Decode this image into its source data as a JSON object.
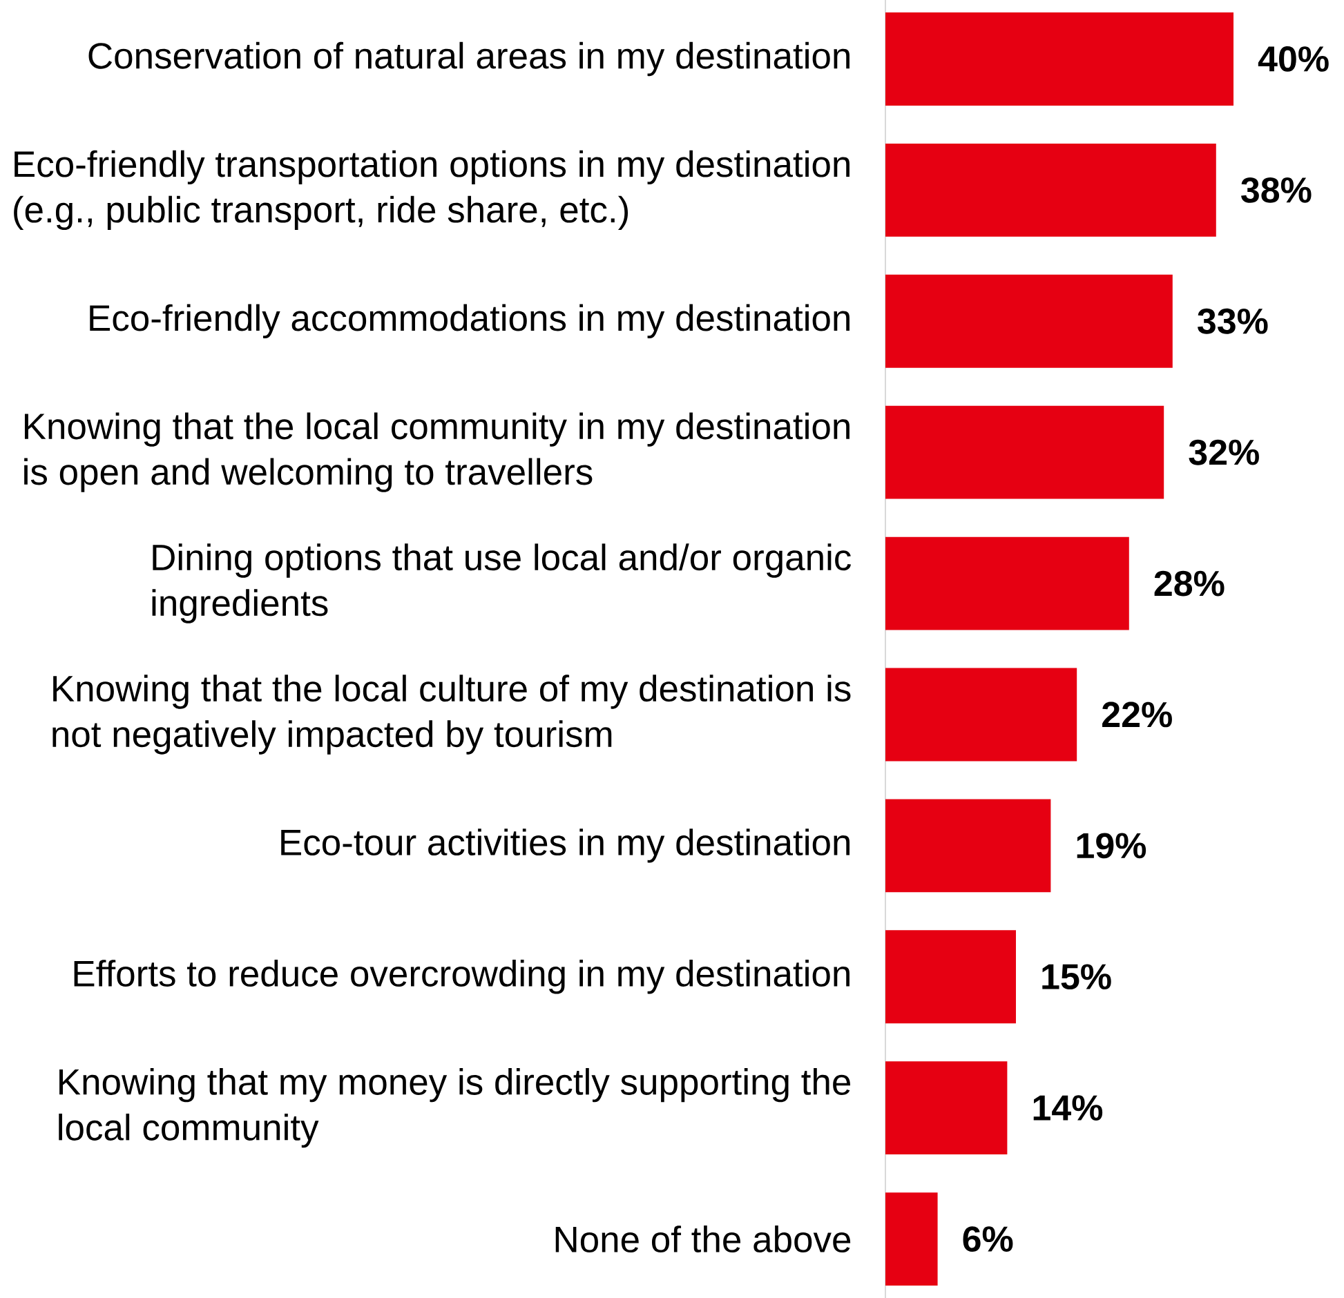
{
  "chart_data": {
    "type": "bar",
    "orientation": "horizontal",
    "color": "#e60012",
    "categories": [
      "Conservation of natural areas in my destination",
      "Eco-friendly transportation options in my destination (e.g., public transport, ride share, etc.)",
      "Eco-friendly accommodations in my destination",
      "Knowing that the local community in my destination is open and welcoming to travellers",
      "Dining options that use local and/or organic ingredients",
      "Knowing that the local culture of my destination is not negatively impacted by tourism",
      "Eco-tour activities in my destination",
      "Efforts to reduce overcrowding in my destination",
      "Knowing that my money is directly supporting the local community",
      "None of the above"
    ],
    "values": [
      40,
      38,
      33,
      32,
      28,
      22,
      19,
      15,
      14,
      6
    ],
    "value_labels": [
      "40%",
      "38%",
      "33%",
      "32%",
      "28%",
      "22%",
      "19%",
      "15%",
      "14%",
      "6%"
    ],
    "tick_labels": "y"
  }
}
